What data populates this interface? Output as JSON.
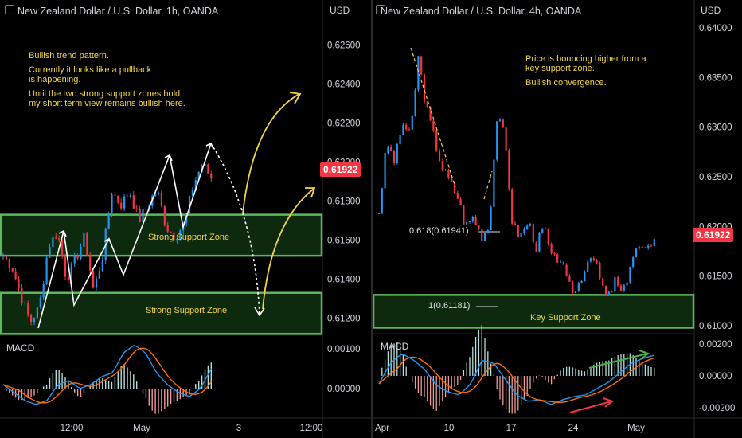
{
  "left": {
    "title": "New Zealand Dollar / U.S. Dollar, 1h, OANDA",
    "currency": "USD",
    "price_ticks": [
      "0.62600",
      "0.62400",
      "0.62200",
      "0.62000",
      "0.61800",
      "0.61600",
      "0.61400",
      "0.61200"
    ],
    "current_price": "0.61922",
    "macd_label": "MACD",
    "macd_ticks": [
      "0.00100",
      "0.00000"
    ],
    "time_ticks": [
      "12:00",
      "May",
      "3",
      "12:00"
    ],
    "note_lines": [
      "Bullish trend pattern.",
      "Currently it looks like a pullback",
      "is happening.",
      "Until the two strong support zones hold",
      "my short term view remains bullish here."
    ],
    "zone_upper_label": "Strong Support Zone",
    "zone_lower_label": "Strong Support Zone"
  },
  "right": {
    "title": "New Zealand Dollar / U.S. Dollar, 4h, OANDA",
    "currency": "USD",
    "price_ticks": [
      "0.64000",
      "0.63500",
      "0.63000",
      "0.62500",
      "0.62000",
      "0.61500",
      "0.61000"
    ],
    "current_price": "0.61922",
    "macd_label": "MACD",
    "macd_ticks": [
      "0.00200",
      "0.00000",
      "-0.00200"
    ],
    "time_ticks": [
      "Apr",
      "10",
      "17",
      "24",
      "May"
    ],
    "note_lines": [
      "Price is bouncing higher from a",
      "key support zone.",
      "",
      "Bullish convergence."
    ],
    "fib_618_label": "0.618(0.61941)",
    "fib_1_label": "1(0.61181)",
    "zone_label": "Key Support Zone"
  },
  "colors": {
    "up": "#2196f3",
    "down": "#f23645",
    "zone_border": "#5cb85c",
    "zone_fill": "#0d2a0f",
    "annotation": "#f5d547",
    "macd_line": "#2196f3",
    "signal_line": "#ff6d00"
  },
  "chart_data": [
    {
      "type": "candlestick",
      "title": "New Zealand Dollar / U.S. Dollar, 1h, OANDA",
      "ylim": [
        0.6112,
        0.6268
      ],
      "support_zones": [
        [
          0.6152,
          0.6173
        ],
        [
          0.6112,
          0.6133
        ]
      ],
      "last_price": 0.61922,
      "macd_ylim": [
        -0.0006,
        0.0012
      ]
    },
    {
      "type": "candlestick",
      "title": "New Zealand Dollar / U.S. Dollar, 4h, OANDA",
      "ylim": [
        0.6095,
        0.6405
      ],
      "support_zone": [
        0.6098,
        0.6131
      ],
      "fib_levels": [
        {
          "label": "0.618",
          "value": 0.61941
        },
        {
          "label": "1",
          "value": 0.61181
        }
      ],
      "last_price": 0.61922,
      "macd_ylim": [
        -0.0024,
        0.0024
      ]
    }
  ]
}
